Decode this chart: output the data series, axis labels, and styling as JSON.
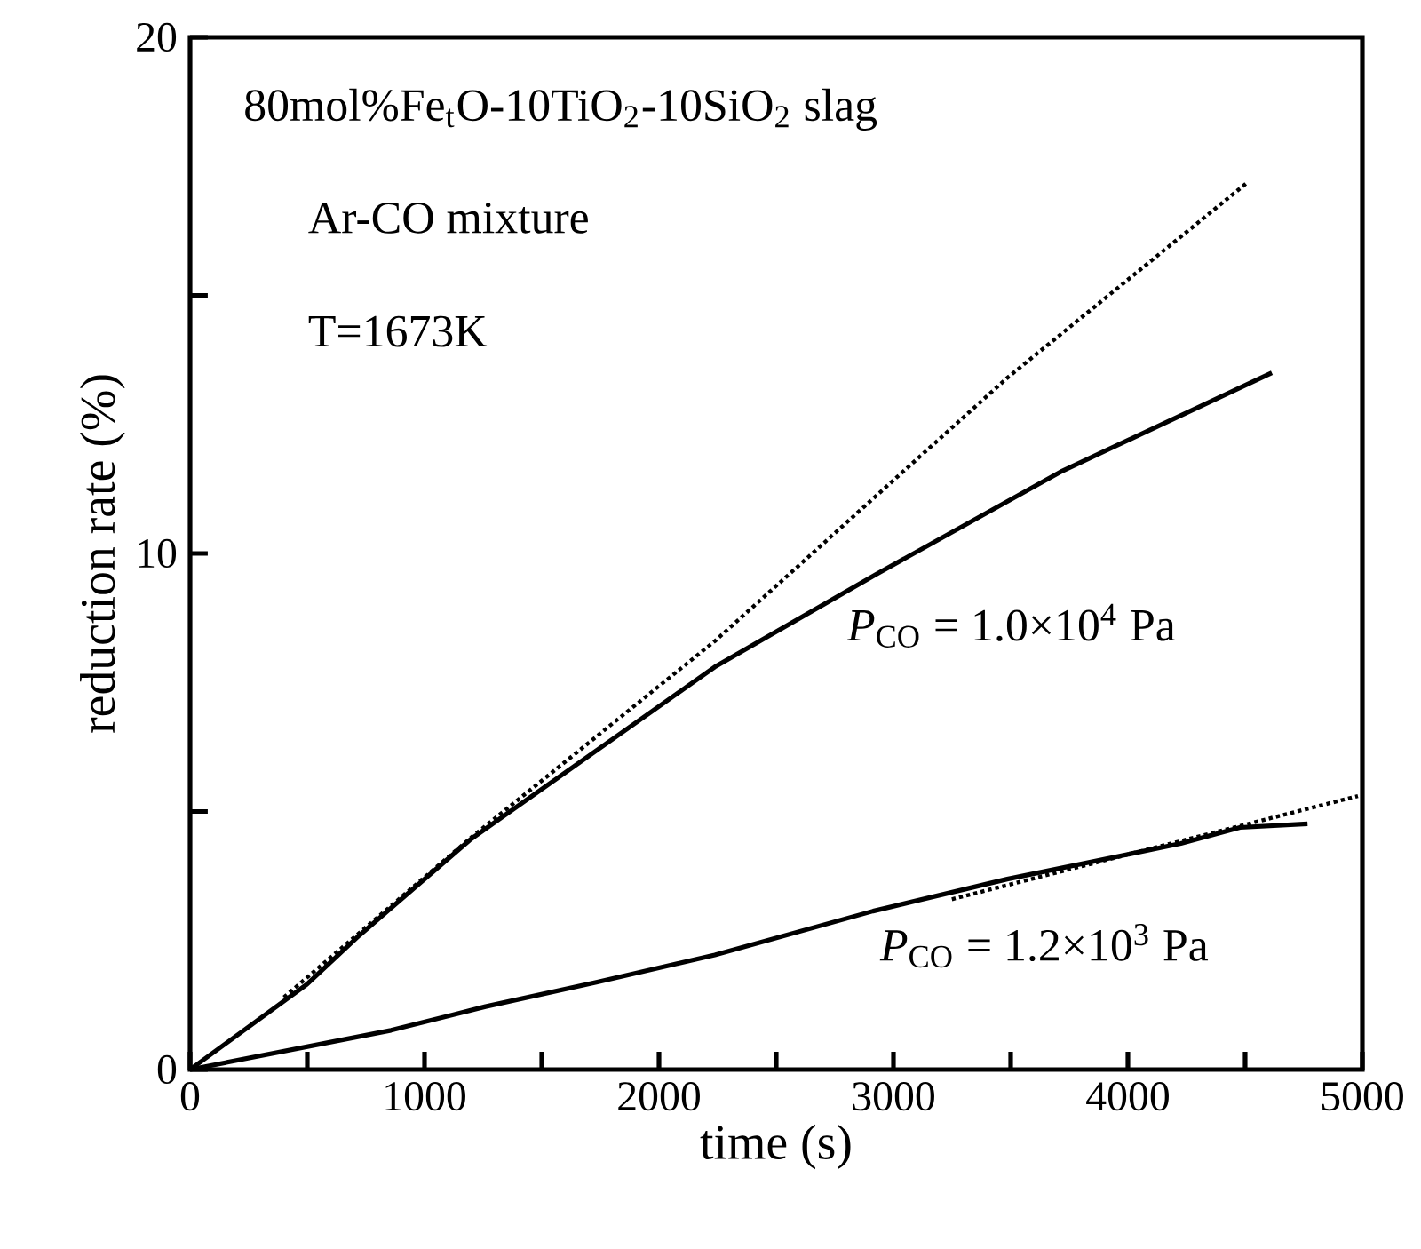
{
  "chart_data": {
    "type": "line",
    "xlabel": "time (s)",
    "ylabel": "reduction rate (%)",
    "xlim": [
      0,
      5000
    ],
    "ylim": [
      0,
      20
    ],
    "xticks": [
      0,
      {
        "value": 500,
        "label": null
      },
      1000,
      {
        "value": 1500,
        "label": null
      },
      2000,
      {
        "value": 2500,
        "label": null
      },
      3000,
      {
        "value": 3500,
        "label": null
      },
      4000,
      {
        "value": 4500,
        "label": null
      },
      5000
    ],
    "yticks": [
      0,
      {
        "value": 5,
        "label": null
      },
      10,
      {
        "value": 15,
        "label": null
      },
      20
    ],
    "marker": "none",
    "series": [
      {
        "color": "#000000",
        "line_style": "solid",
        "x": [
          0,
          498,
          722,
          1194,
          2238,
          2928,
          3721,
          4614
        ],
        "values": [
          0,
          1.65,
          2.6,
          4.45,
          7.8,
          9.6,
          11.6,
          13.5
        ]
      },
      {
        "color": "#000000",
        "line_style": "dotted",
        "x": [
          400,
          1200,
          2238,
          3485,
          4513
        ],
        "values": [
          1.4,
          4.5,
          8.3,
          13.4,
          17.2
        ]
      },
      {
        "color": "#000000",
        "line_style": "solid",
        "x": [
          0,
          857,
          1260,
          1733,
          2238,
          2913,
          3485,
          4226,
          4478,
          4766
        ],
        "values": [
          0,
          0.76,
          1.22,
          1.69,
          2.22,
          3.07,
          3.69,
          4.38,
          4.69,
          4.76
        ]
      },
      {
        "color": "#000000",
        "line_style": "dotted",
        "x": [
          3249,
          4981
        ],
        "values": [
          3.3,
          5.3
        ]
      }
    ],
    "annotations": [
      "80mol%Fe$_{t}$O-10TiO$_{2}$-10SiO$_{2}$ slag",
      "Ar-CO mixture",
      "T=1673K",
      "*P*$_{CO}$ = 1.0×10$^{4}$ Pa",
      "*P*$_{CO}$ = 1.2×10$^{3}$ Pa"
    ]
  }
}
